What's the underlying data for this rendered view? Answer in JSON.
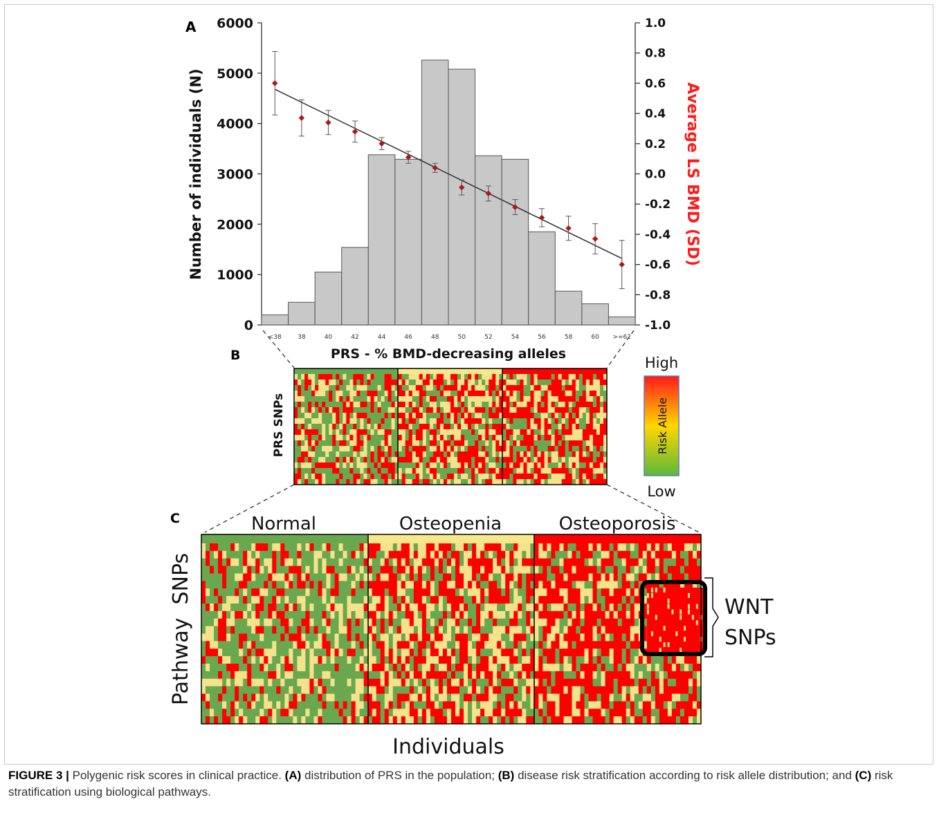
{
  "figure": {
    "panel_labels": {
      "a": "A",
      "b": "B",
      "c": "C"
    },
    "colors": {
      "bar": "#c8c8c8",
      "point": "#b01818",
      "trend": "#333333",
      "risk_low": "#6aa84f",
      "risk_mid": "#f4e38a",
      "risk_high": "#ff0000",
      "right_axis_label": "#ff1a1a"
    }
  },
  "chart_data": {
    "type": "bar",
    "xlabel": "PRS - % BMD-decreasing alleles",
    "ylabel": "Number of individuals (N)",
    "y2label": "Average LS BMD (SD)",
    "categories": [
      "<38",
      "38",
      "40",
      "42",
      "44",
      "46",
      "48",
      "50",
      "52",
      "54",
      "56",
      "58",
      "60",
      ">=62"
    ],
    "ylim": [
      0,
      6000
    ],
    "yticks": [
      0,
      1000,
      2000,
      3000,
      4000,
      5000,
      6000
    ],
    "y2lim": [
      -1.0,
      1.0
    ],
    "y2ticks": [
      "1.0",
      "0.8",
      "0.6",
      "0.4",
      "0.2",
      "0.0",
      "-0.2",
      "-0.4",
      "-0.6",
      "-0.8",
      "-1.0"
    ],
    "series": [
      {
        "values": [
          200,
          450,
          1050,
          1540,
          3380,
          3290,
          5260,
          5080,
          3360,
          3290,
          1850,
          670,
          420,
          160
        ]
      },
      {
        "axis": "right",
        "values": [
          0.6,
          0.37,
          0.34,
          0.28,
          0.2,
          0.11,
          0.04,
          -0.09,
          -0.13,
          -0.22,
          -0.29,
          -0.36,
          -0.43,
          -0.6
        ],
        "err": [
          0.21,
          0.12,
          0.08,
          0.07,
          0.04,
          0.04,
          0.03,
          0.05,
          0.05,
          0.05,
          0.06,
          0.08,
          0.1,
          0.16
        ]
      }
    ],
    "trend": {
      "from": 0.56,
      "to": -0.56
    }
  },
  "panel_b": {
    "ylabel": "PRS SNPs",
    "legend_high": "High",
    "legend_low": "Low",
    "legend_label": "Risk Allele"
  },
  "panel_c": {
    "groups": [
      "Normal",
      "Osteopenia",
      "Osteoporosis"
    ],
    "ylabel": "Pathway  SNPs",
    "xlabel": "Individuals",
    "annotation_line1": "WNT",
    "annotation_line2": "SNPs"
  },
  "caption": {
    "figure_label": "FIGURE 3 |",
    "intro": " Polygenic risk scores in clinical practice. ",
    "a_label": "(A)",
    "a_text": " distribution of PRS in the population; ",
    "b_label": "(B)",
    "b_text": " disease risk stratification according to risk allele distribution; and ",
    "c_label": "(C)",
    "c_text": " risk stratification using biological pathways."
  }
}
